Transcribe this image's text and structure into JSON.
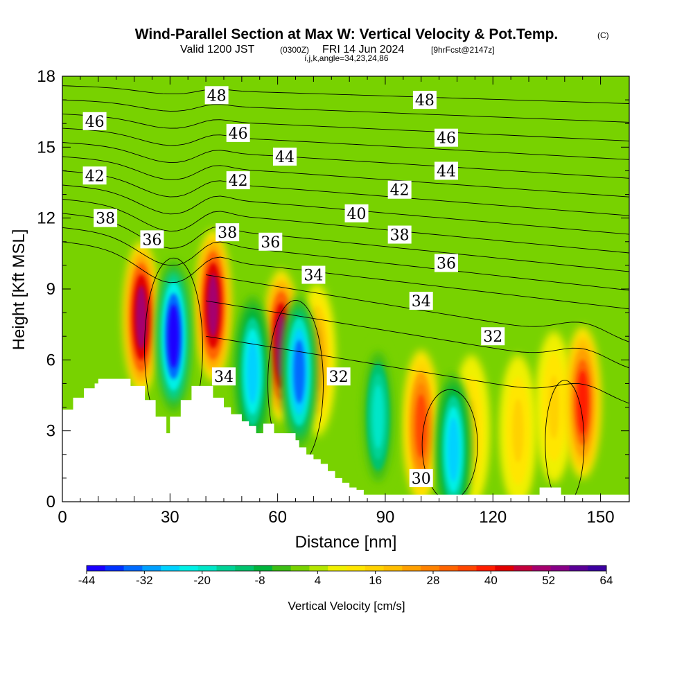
{
  "title": {
    "main": "Wind-Parallel Section at Max W: Vertical Velocity & Pot.Temp.",
    "copyright": "(C)",
    "valid_prefix": "Valid 1200 JST",
    "valid_utc": "(0300Z)",
    "valid_date": "FRI 14 Jun 2024",
    "forecast": "[9hrFcst@2147z]",
    "indices": "i,j,k,angle=34,23,24,86"
  },
  "chart_data": {
    "type": "heatmap",
    "title": "Wind-Parallel Section at Max W: Vertical Velocity & Pot.Temp.",
    "xlabel": "Distance [nm]",
    "ylabel": "Height [Kft MSL]",
    "xlim": [
      0,
      158
    ],
    "ylim": [
      0,
      18
    ],
    "x_ticks": [
      0,
      30,
      60,
      90,
      120,
      150
    ],
    "y_ticks": [
      0,
      3,
      6,
      9,
      12,
      15,
      18
    ],
    "colorbar": {
      "title": "Vertical Velocity [cm/s]",
      "tick_labels": [
        "-44",
        "-32",
        "-20",
        "-8",
        "4",
        "16",
        "28",
        "40",
        "52",
        "64"
      ],
      "colors": [
        "#1a00ff",
        "#0033ff",
        "#006bff",
        "#00a0ff",
        "#00d2ff",
        "#00f0e6",
        "#00e6c8",
        "#00d296",
        "#00c36e",
        "#00b43c",
        "#3cbe14",
        "#78d200",
        "#b4e600",
        "#f0f000",
        "#ffe600",
        "#ffd200",
        "#ffbe00",
        "#ffa000",
        "#ff8200",
        "#ff6400",
        "#ff4600",
        "#ff1e00",
        "#e10000",
        "#c3003c",
        "#a5006e",
        "#870087",
        "#5a0096",
        "#3c00a0"
      ]
    },
    "background_color": "#78d200",
    "updraft_cells": [
      {
        "x": 22,
        "y": 7.8,
        "value": 52
      },
      {
        "x": 42,
        "y": 8.3,
        "value": 52
      },
      {
        "x": 61,
        "y": 6.6,
        "value": 52
      },
      {
        "x": 71,
        "y": 6.0,
        "value": 22
      },
      {
        "x": 100,
        "y": 3.2,
        "value": 34
      },
      {
        "x": 114,
        "y": 3.0,
        "value": 16
      },
      {
        "x": 127,
        "y": 3.0,
        "value": 16
      },
      {
        "x": 137,
        "y": 4.0,
        "value": 16
      },
      {
        "x": 145,
        "y": 4.2,
        "value": 40
      }
    ],
    "downdraft_cells": [
      {
        "x": 31,
        "y": 7.0,
        "value": -44
      },
      {
        "x": 53,
        "y": 5.5,
        "value": -30
      },
      {
        "x": 66,
        "y": 5.5,
        "value": -38
      },
      {
        "x": 88,
        "y": 3.6,
        "value": -20
      },
      {
        "x": 109,
        "y": 2.2,
        "value": -30
      }
    ],
    "theta_contours": [
      30,
      32,
      34,
      36,
      38,
      40,
      42,
      44,
      46,
      48
    ],
    "contour_labels": [
      {
        "text": "48",
        "x": 43,
        "y": 17.2
      },
      {
        "text": "48",
        "x": 101,
        "y": 17.0
      },
      {
        "text": "46",
        "x": 9,
        "y": 16.1
      },
      {
        "text": "46",
        "x": 49,
        "y": 15.6
      },
      {
        "text": "46",
        "x": 107,
        "y": 15.4
      },
      {
        "text": "44",
        "x": 62,
        "y": 14.6
      },
      {
        "text": "44",
        "x": 107,
        "y": 14.0
      },
      {
        "text": "42",
        "x": 9,
        "y": 13.8
      },
      {
        "text": "42",
        "x": 49,
        "y": 13.6
      },
      {
        "text": "42",
        "x": 94,
        "y": 13.2
      },
      {
        "text": "40",
        "x": 82,
        "y": 12.2
      },
      {
        "text": "38",
        "x": 12,
        "y": 12.0
      },
      {
        "text": "38",
        "x": 46,
        "y": 11.4
      },
      {
        "text": "38",
        "x": 94,
        "y": 11.3
      },
      {
        "text": "36",
        "x": 25,
        "y": 11.1
      },
      {
        "text": "36",
        "x": 58,
        "y": 11.0
      },
      {
        "text": "36",
        "x": 107,
        "y": 10.1
      },
      {
        "text": "34",
        "x": 70,
        "y": 9.6
      },
      {
        "text": "34",
        "x": 100,
        "y": 8.5
      },
      {
        "text": "34",
        "x": 45,
        "y": 5.3
      },
      {
        "text": "32",
        "x": 120,
        "y": 7.0
      },
      {
        "text": "32",
        "x": 77,
        "y": 5.3
      },
      {
        "text": "30",
        "x": 100,
        "y": 1.0
      }
    ],
    "terrain": {
      "color": "#ffffff",
      "profile_x": [
        0,
        3,
        3,
        6,
        6,
        9,
        9,
        10,
        10,
        12,
        12,
        19,
        19,
        23,
        23,
        26,
        26,
        29,
        29,
        30,
        30,
        33,
        33,
        36,
        36,
        42,
        42,
        45,
        45,
        47,
        47,
        50,
        50,
        52,
        52,
        54,
        54,
        56,
        56,
        59,
        59,
        65,
        65,
        66,
        66,
        68,
        68,
        70,
        70,
        72,
        72,
        74,
        74,
        76,
        76,
        78,
        78,
        80,
        80,
        82,
        82,
        84,
        84,
        87,
        87,
        89,
        89,
        133,
        133,
        139,
        139,
        158
      ],
      "profile_y": [
        3.9,
        3.9,
        4.4,
        4.4,
        4.8,
        4.8,
        5.0,
        5.0,
        5.2,
        5.2,
        5.2,
        5.2,
        4.9,
        4.9,
        4.3,
        4.3,
        3.6,
        3.6,
        2.9,
        2.9,
        3.6,
        3.6,
        4.3,
        4.3,
        4.9,
        4.9,
        4.4,
        4.4,
        4.0,
        4.0,
        3.7,
        3.7,
        3.4,
        3.4,
        3.2,
        3.2,
        2.9,
        2.9,
        3.3,
        3.3,
        2.9,
        2.9,
        2.6,
        2.6,
        2.3,
        2.3,
        2.0,
        2.0,
        1.8,
        1.8,
        1.6,
        1.6,
        1.3,
        1.3,
        1.0,
        1.0,
        0.8,
        0.8,
        0.6,
        0.6,
        0.5,
        0.5,
        0.3,
        0.3,
        0.3,
        0.3,
        0.3,
        0.3,
        0.6,
        0.6,
        0.3,
        0.3
      ]
    }
  }
}
